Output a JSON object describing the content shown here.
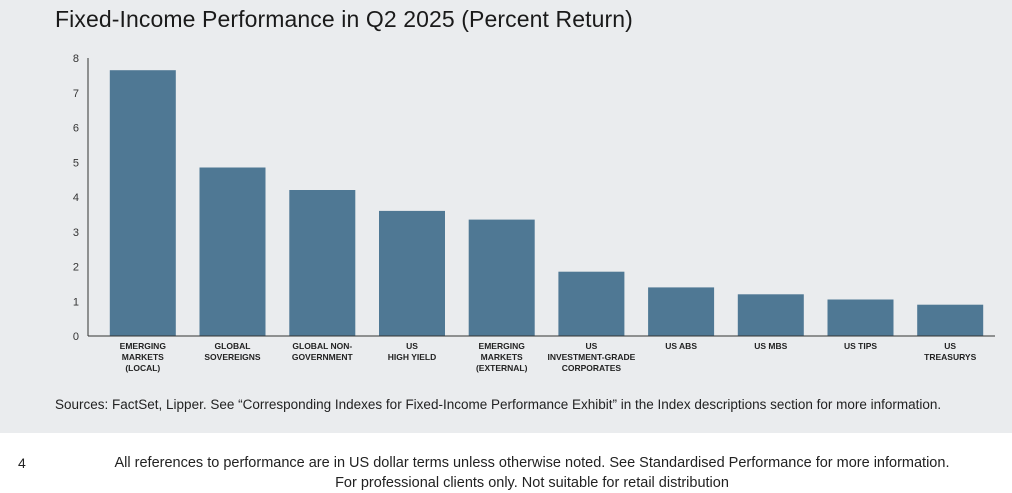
{
  "title": "Fixed-Income Performance in Q2 2025 (Percent Return)",
  "sources": "Sources: FactSet, Lipper. See “Corresponding Indexes for Fixed-Income Performance Exhibit” in the Index descriptions section for more information.",
  "footer": {
    "page_number": "4",
    "line1": "All references to performance are in US dollar terms unless otherwise noted. See Standardised Performance for more information.",
    "line2": "For professional clients only. Not suitable for retail distribution"
  },
  "colors": {
    "bar": "#4f7894",
    "axis": "#333333",
    "panel_bg": "#eaecee"
  },
  "chart_data": {
    "type": "bar",
    "title": "Fixed-Income Performance in Q2 2025 (Percent Return)",
    "xlabel": "",
    "ylabel": "",
    "ylim": [
      0,
      8
    ],
    "yticks": [
      "0",
      "1",
      "2",
      "3",
      "4",
      "5",
      "6",
      "7",
      "8"
    ],
    "grid": false,
    "categories": [
      [
        "EMERGING",
        "MARKETS",
        "(LOCAL)"
      ],
      [
        "GLOBAL",
        "SOVEREIGNS"
      ],
      [
        "GLOBAL NON-",
        "GOVERNMENT"
      ],
      [
        "US",
        "HIGH YIELD"
      ],
      [
        "EMERGING",
        "MARKETS",
        "(EXTERNAL)"
      ],
      [
        "US",
        "INVESTMENT-GRADE",
        "CORPORATES"
      ],
      [
        "US ABS"
      ],
      [
        "US MBS"
      ],
      [
        "US TIPS"
      ],
      [
        "US",
        "TREASURYS"
      ]
    ],
    "values": [
      7.65,
      4.85,
      4.2,
      3.6,
      3.35,
      1.85,
      1.4,
      1.2,
      1.05,
      0.9
    ]
  }
}
